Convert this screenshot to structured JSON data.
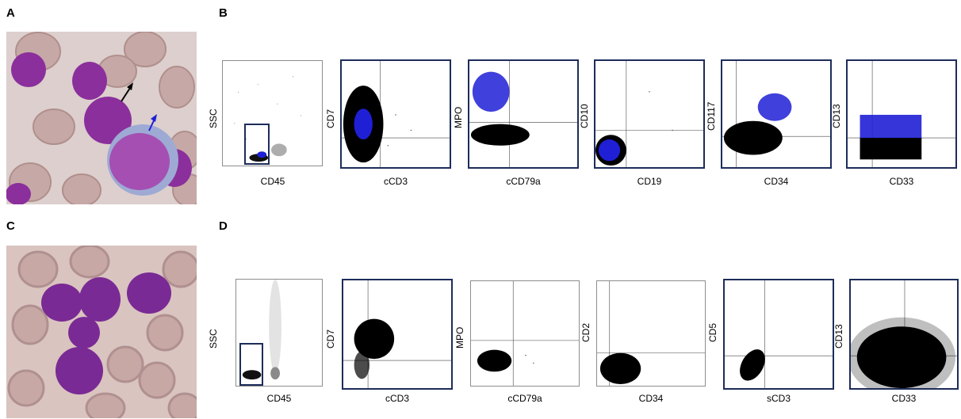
{
  "panels": {
    "a": "A",
    "b": "B",
    "c": "C",
    "d": "D"
  },
  "colors": {
    "frame": "#1d2c5a",
    "blast_population": "#1f1fd6",
    "cells": "#000000",
    "cell_stain": "#8b2f9c",
    "rbc": "#c9aaa8"
  },
  "row_b": {
    "plots": [
      {
        "x": "CD45",
        "y": "SSC"
      },
      {
        "x": "cCD3",
        "y": "CD7"
      },
      {
        "x": "cCD79a",
        "y": "MPO"
      },
      {
        "x": "CD19",
        "y": "CD10"
      },
      {
        "x": "CD34",
        "y": "CD117"
      },
      {
        "x": "CD33",
        "y": "CD13"
      }
    ]
  },
  "row_d": {
    "plots": [
      {
        "x": "CD45",
        "y": "SSC"
      },
      {
        "x": "cCD3",
        "y": "CD7"
      },
      {
        "x": "cCD79a",
        "y": "MPO"
      },
      {
        "x": "CD34",
        "y": "CD2"
      },
      {
        "x": "sCD3",
        "y": "CD5"
      },
      {
        "x": "CD33",
        "y": "CD13"
      }
    ]
  }
}
